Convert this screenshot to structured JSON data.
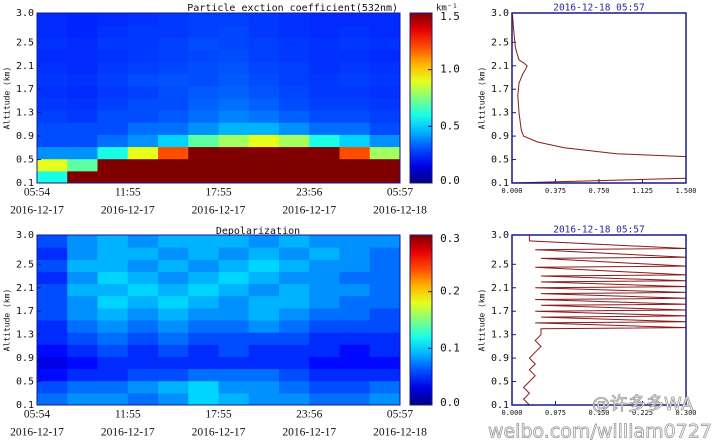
{
  "chart_data": [
    {
      "type": "heatmap",
      "title": "Particle exction coefficient(532nm)",
      "colorbar_label": "km⁻¹",
      "ylabel": "Altitude (km)",
      "categories": [
        "05:54",
        "11:55",
        "17:55",
        "23:56",
        "05:57"
      ],
      "dates": [
        "2016-12-17",
        "2016-12-17",
        "2016-12-17",
        "2016-12-17",
        "2016-12-18"
      ],
      "ylim": [
        0.1,
        3
      ],
      "yticks": [
        0.1,
        0.5,
        0.9,
        1.3,
        1.7,
        2.1,
        2.5,
        {
          "value": 3,
          "label": "3.0"
        }
      ],
      "clim": [
        0,
        1.5
      ],
      "cticks": [
        {
          "value": 0,
          "label": "0.0"
        },
        0.5,
        {
          "value": 1,
          "label": "1.0"
        },
        1.5
      ],
      "values": [
        [
          0.6,
          1.5,
          1.5,
          1.5,
          1.5,
          1.5,
          1.5,
          1.5,
          1.5,
          1.5,
          1.5,
          1.5
        ],
        [
          0.9,
          0.7,
          1.5,
          1.5,
          1.5,
          1.5,
          1.5,
          1.5,
          1.5,
          1.5,
          1.5,
          1.5
        ],
        [
          0.4,
          0.4,
          0.6,
          0.9,
          1.2,
          1.5,
          1.5,
          1.5,
          1.5,
          1.5,
          1.2,
          0.8
        ],
        [
          0.3,
          0.3,
          0.35,
          0.4,
          0.5,
          0.7,
          0.8,
          0.9,
          0.8,
          0.6,
          0.5,
          0.4
        ],
        [
          0.3,
          0.3,
          0.3,
          0.35,
          0.35,
          0.4,
          0.45,
          0.45,
          0.4,
          0.35,
          0.35,
          0.3
        ],
        [
          0.28,
          0.27,
          0.3,
          0.3,
          0.32,
          0.35,
          0.38,
          0.36,
          0.33,
          0.3,
          0.3,
          0.28
        ],
        [
          0.27,
          0.26,
          0.28,
          0.3,
          0.3,
          0.33,
          0.35,
          0.33,
          0.3,
          0.28,
          0.28,
          0.27
        ],
        [
          0.26,
          0.25,
          0.27,
          0.28,
          0.3,
          0.32,
          0.33,
          0.31,
          0.29,
          0.27,
          0.27,
          0.26
        ],
        [
          0.27,
          0.26,
          0.28,
          0.3,
          0.31,
          0.3,
          0.32,
          0.3,
          0.28,
          0.27,
          0.28,
          0.27
        ],
        [
          0.26,
          0.25,
          0.27,
          0.28,
          0.29,
          0.3,
          0.31,
          0.29,
          0.28,
          0.26,
          0.27,
          0.26
        ],
        [
          0.25,
          0.25,
          0.26,
          0.27,
          0.28,
          0.29,
          0.3,
          0.28,
          0.27,
          0.26,
          0.26,
          0.25
        ],
        [
          0.26,
          0.25,
          0.27,
          0.27,
          0.28,
          0.3,
          0.29,
          0.28,
          0.27,
          0.26,
          0.27,
          0.26
        ],
        [
          0.25,
          0.24,
          0.26,
          0.27,
          0.27,
          0.28,
          0.29,
          0.27,
          0.26,
          0.25,
          0.26,
          0.25
        ],
        [
          0.25,
          0.24,
          0.25,
          0.26,
          0.27,
          0.28,
          0.28,
          0.27,
          0.26,
          0.25,
          0.25,
          0.25
        ]
      ]
    },
    {
      "type": "heatmap",
      "title": "Depolarization",
      "ylabel": "Altitude (km)",
      "categories": [
        "05:54",
        "11:55",
        "17:55",
        "23:56",
        "05:57"
      ],
      "dates": [
        "2016-12-17",
        "2016-12-17",
        "2016-12-17",
        "2016-12-17",
        "2016-12-18"
      ],
      "ylim": [
        0.1,
        3
      ],
      "yticks": [
        0.1,
        0.5,
        0.9,
        1.3,
        1.7,
        2.1,
        2.5,
        {
          "value": 3,
          "label": "3.0"
        }
      ],
      "clim": [
        0,
        0.3
      ],
      "cticks": [
        {
          "value": 0,
          "label": "0.0"
        },
        0.1,
        0.2,
        0.3
      ],
      "values": [
        [
          0.07,
          0.08,
          0.08,
          0.07,
          0.08,
          0.1,
          0.09,
          0.08,
          0.08,
          0.07,
          0.07,
          0.08
        ],
        [
          0.06,
          0.07,
          0.07,
          0.08,
          0.09,
          0.1,
          0.08,
          0.08,
          0.07,
          0.06,
          0.06,
          0.07
        ],
        [
          0.04,
          0.05,
          0.05,
          0.06,
          0.06,
          0.07,
          0.07,
          0.07,
          0.06,
          0.05,
          0.05,
          0.05
        ],
        [
          0.03,
          0.04,
          0.05,
          0.05,
          0.05,
          0.05,
          0.05,
          0.05,
          0.05,
          0.04,
          0.04,
          0.04
        ],
        [
          0.04,
          0.05,
          0.06,
          0.05,
          0.06,
          0.05,
          0.06,
          0.05,
          0.05,
          0.05,
          0.04,
          0.05
        ],
        [
          0.05,
          0.06,
          0.07,
          0.06,
          0.07,
          0.06,
          0.06,
          0.06,
          0.06,
          0.05,
          0.05,
          0.05
        ],
        [
          0.05,
          0.07,
          0.08,
          0.07,
          0.08,
          0.07,
          0.07,
          0.08,
          0.07,
          0.06,
          0.06,
          0.06
        ],
        [
          0.06,
          0.08,
          0.09,
          0.08,
          0.09,
          0.08,
          0.08,
          0.09,
          0.08,
          0.07,
          0.07,
          0.06
        ],
        [
          0.06,
          0.08,
          0.1,
          0.09,
          0.1,
          0.09,
          0.08,
          0.09,
          0.09,
          0.08,
          0.07,
          0.07
        ],
        [
          0.06,
          0.09,
          0.09,
          0.1,
          0.09,
          0.1,
          0.09,
          0.08,
          0.09,
          0.08,
          0.08,
          0.07
        ],
        [
          0.05,
          0.08,
          0.1,
          0.09,
          0.08,
          0.09,
          0.1,
          0.09,
          0.08,
          0.08,
          0.07,
          0.07
        ],
        [
          0.06,
          0.09,
          0.09,
          0.08,
          0.09,
          0.08,
          0.09,
          0.1,
          0.09,
          0.08,
          0.08,
          0.07
        ],
        [
          0.05,
          0.08,
          0.09,
          0.09,
          0.08,
          0.09,
          0.08,
          0.09,
          0.08,
          0.09,
          0.08,
          0.07
        ],
        [
          0.06,
          0.08,
          0.09,
          0.08,
          0.09,
          0.09,
          0.09,
          0.08,
          0.09,
          0.08,
          0.08,
          0.08
        ]
      ]
    },
    {
      "type": "profile",
      "title": "2016-12-18 05:57",
      "ylabel": "Altitude (km)",
      "color": "#8b1a1a",
      "xlim": [
        0,
        1.5
      ],
      "xticks": [
        {
          "value": 0,
          "label": "0.000"
        },
        0.375,
        {
          "value": 0.75,
          "label": "0.750"
        },
        1.125,
        {
          "value": 1.5,
          "label": "1.500"
        }
      ],
      "ylim": [
        0.1,
        3
      ],
      "yticks": [
        0.1,
        0.5,
        0.9,
        1.3,
        1.7,
        2.1,
        2.5,
        {
          "value": 3,
          "label": "3.0"
        }
      ],
      "altitude": [
        0.1,
        0.18,
        0.55,
        0.6,
        0.7,
        0.8,
        0.9,
        1.0,
        1.3,
        1.6,
        1.8,
        1.95,
        2.05,
        2.1,
        2.15,
        2.2,
        2.4,
        2.6,
        2.8,
        2.95,
        3.0
      ],
      "values": [
        0,
        1.5,
        1.5,
        0.9,
        0.45,
        0.22,
        0.1,
        0.08,
        0.06,
        0.05,
        0.06,
        0.09,
        0.12,
        0.13,
        0.1,
        0.06,
        0.03,
        0.02,
        0.01,
        0.005,
        0
      ]
    },
    {
      "type": "profile",
      "title": "2016-12-18 05:57",
      "ylabel": "Altitude (km)",
      "color": "#8b1a1a",
      "xlim": [
        0,
        0.3
      ],
      "xticks": [
        {
          "value": 0,
          "label": "0.000"
        },
        0.075,
        {
          "value": 0.15,
          "label": "0.150"
        },
        0.225,
        {
          "value": 0.3,
          "label": "0.300"
        }
      ],
      "ylim": [
        0.1,
        3
      ],
      "yticks": [
        0.1,
        0.5,
        0.9,
        1.3,
        1.7,
        2.1,
        2.5,
        {
          "value": 3,
          "label": "3.0"
        }
      ],
      "altitude": [
        0.1,
        0.2,
        0.3,
        0.4,
        0.5,
        0.6,
        0.7,
        0.8,
        0.9,
        1.0,
        1.1,
        1.2,
        1.3,
        1.4,
        1.42,
        1.5,
        1.52,
        1.6,
        1.62,
        1.7,
        1.72,
        1.8,
        1.82,
        1.9,
        1.92,
        2.0,
        2.02,
        2.1,
        2.12,
        2.2,
        2.22,
        2.3,
        2.32,
        2.45,
        2.47,
        2.6,
        2.62,
        2.75,
        2.77,
        2.9,
        3.0
      ],
      "values": [
        0.03,
        0.02,
        0.03,
        0.02,
        0.03,
        0.04,
        0.03,
        0.04,
        0.03,
        0.04,
        0.05,
        0.04,
        0.05,
        0.05,
        0.3,
        0.04,
        0.3,
        0.05,
        0.3,
        0.04,
        0.3,
        0.05,
        0.3,
        0.04,
        0.3,
        0.05,
        0.3,
        0.04,
        0.3,
        0.05,
        0.3,
        0.05,
        0.3,
        0.04,
        0.3,
        0.05,
        0.3,
        0.04,
        0.3,
        0.03,
        0.03
      ]
    }
  ],
  "watermark": {
    "handle": "@许多多WA",
    "url": "weibo.com/william0727"
  }
}
